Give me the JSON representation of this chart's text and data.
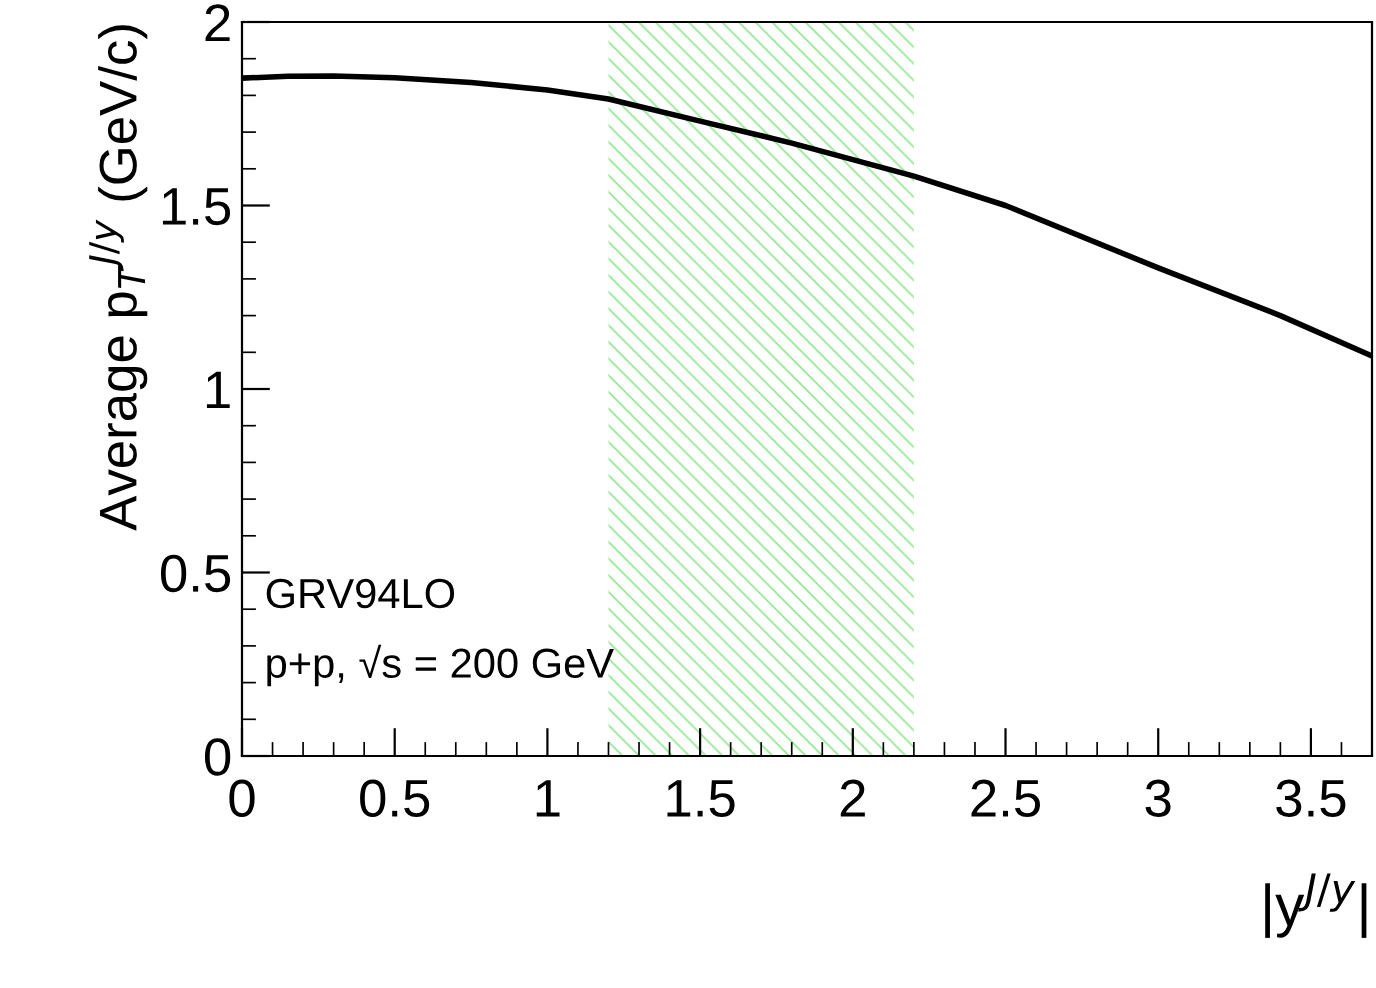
{
  "chart_data": {
    "type": "line",
    "xlabel": "|y$^{J/y}$|",
    "ylabel": "Average p$_{T}$$^{J/y}$ (GeV/c)",
    "x": [
      0,
      0.15,
      0.3,
      0.5,
      0.75,
      1.0,
      1.2,
      1.5,
      1.8,
      2.2,
      2.5,
      3.0,
      3.4,
      3.7
    ],
    "series": [
      {
        "color": "#000000",
        "values": [
          1.847,
          1.852,
          1.853,
          1.848,
          1.835,
          1.815,
          1.79,
          1.73,
          1.67,
          1.58,
          1.5,
          1.33,
          1.2,
          1.09
        ]
      }
    ],
    "xlim": [
      0,
      3.7
    ],
    "ylim": [
      0,
      2
    ],
    "xticks": [
      0,
      0.5,
      1,
      1.5,
      2,
      2.5,
      3,
      3.5
    ],
    "yticks": [
      0,
      0.5,
      1,
      1.5,
      2
    ],
    "bands": [
      {
        "axis": "x",
        "from": 1.2,
        "to": 2.2,
        "color": "#90e890"
      }
    ],
    "annotations": [
      "GRV94LO",
      "p+p, √s = 200 GeV"
    ],
    "grid": false,
    "marker": "none",
    "line_style": "solid"
  }
}
